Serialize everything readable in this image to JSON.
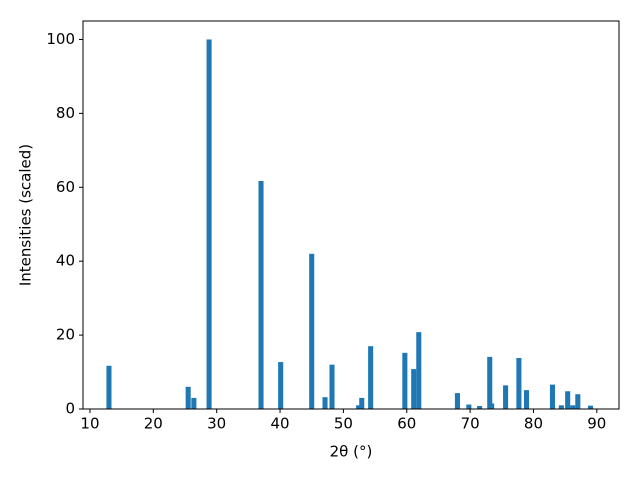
{
  "chart_data": {
    "type": "bar",
    "x_label": "2θ (°)",
    "y_label": "Intensities (scaled)",
    "x": [
      13.0,
      25.5,
      26.4,
      28.8,
      37.0,
      40.1,
      45.0,
      47.1,
      48.2,
      52.4,
      52.9,
      54.3,
      59.7,
      61.1,
      61.9,
      68.0,
      69.8,
      71.5,
      73.1,
      73.4,
      75.6,
      77.7,
      78.9,
      83.0,
      84.4,
      85.4,
      86.2,
      87.0,
      89.0
    ],
    "values": [
      11.7,
      6,
      3,
      100,
      61.7,
      12.7,
      42,
      3.2,
      12,
      1,
      3,
      17,
      15.2,
      10.8,
      20.8,
      4.3,
      1.2,
      0.8,
      14.1,
      1.5,
      6.4,
      13.8,
      5.1,
      6.6,
      1,
      4.8,
      1,
      4,
      0.9
    ],
    "color": "#1f77b4",
    "xlim": [
      8.9,
      93.5
    ],
    "xticks": [
      10,
      20,
      30,
      40,
      50,
      60,
      70,
      80,
      90
    ],
    "ylim": [
      0,
      105
    ],
    "yticks": [
      0,
      20,
      40,
      60,
      80,
      100
    ]
  }
}
